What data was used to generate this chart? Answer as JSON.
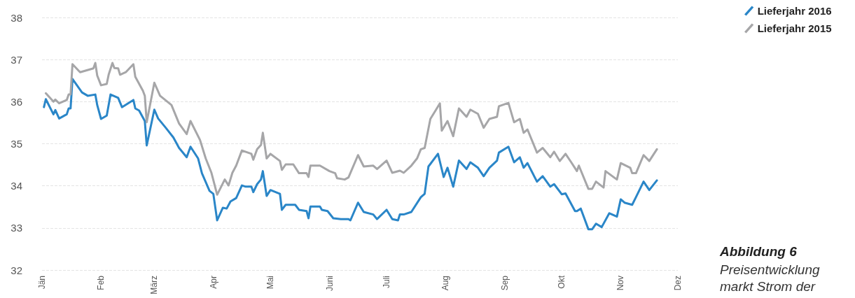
{
  "chart_data": {
    "type": "line",
    "title": "Abbildung 6",
    "annotations": [
      "Preisentwicklung",
      "markt Strom der"
    ],
    "xlim": [
      "--01-01",
      "--12-01"
    ],
    "xticks": [
      {
        "value": "--01-01",
        "label": "Jän"
      },
      {
        "value": "--02-01",
        "label": "Feb"
      },
      {
        "value": "--03-01",
        "label": "März"
      },
      {
        "value": "--04-01",
        "label": "Apr"
      },
      {
        "value": "--05-01",
        "label": "Mai"
      },
      {
        "value": "--06-01",
        "label": "Juni"
      },
      {
        "value": "--07-01",
        "label": "Juli"
      },
      {
        "value": "--08-01",
        "label": "Aug"
      },
      {
        "value": "--09-01",
        "label": "Sep"
      },
      {
        "value": "--10-01",
        "label": "Okt"
      },
      {
        "value": "--11-01",
        "label": "Nov"
      },
      {
        "value": "--12-01",
        "label": "Dez"
      }
    ],
    "ylim": [
      32,
      38
    ],
    "yticks": [
      32,
      33,
      34,
      35,
      36,
      37,
      38
    ],
    "grid": "y",
    "legend": "top right",
    "marker": "none",
    "line_style": "solid",
    "series": [
      {
        "name": "Lieferjahr 2016",
        "color": "#2a86c8",
        "x": [
          "--01-02",
          "--01-03",
          "--01-07",
          "--01-08",
          "--01-10",
          "--01-14",
          "--01-15",
          "--01-16",
          "--01-17",
          "--01-22",
          "--01-25",
          "--01-29",
          "--01-30",
          "--02-01",
          "--02-04",
          "--02-06",
          "--02-10",
          "--02-12",
          "--02-18",
          "--02-19",
          "--02-21",
          "--02-24",
          "--02-25",
          "--03-01",
          "--03-03",
          "--03-07",
          "--03-11",
          "--03-14",
          "--03-18",
          "--03-20",
          "--03-24",
          "--03-26",
          "--03-30",
          "--04-01",
          "--04-03",
          "--04-06",
          "--04-08",
          "--04-10",
          "--04-13",
          "--04-16",
          "--04-18",
          "--04-21",
          "--04-22",
          "--04-24",
          "--04-26",
          "--04-27",
          "--04-29",
          "--05-01",
          "--05-06",
          "--05-07",
          "--05-09",
          "--05-14",
          "--05-16",
          "--05-20",
          "--05-21",
          "--05-22",
          "--05-27",
          "--05-28",
          "--05-31",
          "--06-03",
          "--06-07",
          "--06-11",
          "--06-12",
          "--06-16",
          "--06-19",
          "--06-24",
          "--06-26",
          "--07-01",
          "--07-04",
          "--07-07",
          "--07-08",
          "--07-10",
          "--07-14",
          "--07-19",
          "--07-21",
          "--07-23",
          "--07-28",
          "--07-31",
          "--08-02",
          "--08-05",
          "--08-08",
          "--08-12",
          "--08-14",
          "--08-18",
          "--08-21",
          "--08-24",
          "--08-28",
          "--08-29",
          "--09-03",
          "--09-06",
          "--09-09",
          "--09-11",
          "--09-13",
          "--09-18",
          "--09-21",
          "--09-25",
          "--09-27",
          "--10-01",
          "--10-03",
          "--10-08",
          "--10-09",
          "--10-11",
          "--10-15",
          "--10-17",
          "--10-19",
          "--10-22",
          "--10-26",
          "--10-30",
          "--11-01",
          "--11-03",
          "--11-07",
          "--11-09",
          "--11-13",
          "--11-16",
          "--11-20"
        ],
        "values": [
          35.87,
          36.06,
          35.7,
          35.8,
          35.6,
          35.7,
          35.84,
          35.84,
          36.54,
          36.22,
          36.14,
          36.17,
          35.92,
          35.59,
          35.67,
          36.17,
          36.09,
          35.87,
          36.04,
          35.84,
          35.79,
          35.54,
          34.96,
          35.81,
          35.6,
          35.38,
          35.15,
          34.9,
          34.68,
          34.93,
          34.65,
          34.3,
          33.88,
          33.81,
          33.18,
          33.48,
          33.46,
          33.63,
          33.71,
          34.01,
          33.98,
          33.98,
          33.85,
          34.04,
          34.15,
          34.35,
          33.76,
          33.9,
          33.81,
          33.43,
          33.55,
          33.55,
          33.43,
          33.4,
          33.23,
          33.51,
          33.51,
          33.43,
          33.4,
          33.23,
          33.21,
          33.21,
          33.18,
          33.6,
          33.38,
          33.32,
          33.21,
          33.43,
          33.21,
          33.18,
          33.32,
          33.32,
          33.38,
          33.73,
          33.81,
          34.46,
          34.76,
          34.21,
          34.43,
          33.98,
          34.6,
          34.4,
          34.56,
          34.43,
          34.23,
          34.43,
          34.6,
          34.79,
          34.93,
          34.56,
          34.68,
          34.43,
          34.54,
          34.1,
          34.23,
          33.98,
          34.04,
          33.8,
          33.82,
          33.4,
          33.4,
          33.46,
          32.97,
          32.97,
          33.1,
          33.02,
          33.35,
          33.27,
          33.68,
          33.6,
          33.55,
          33.73,
          34.1,
          33.9,
          34.13
        ]
      },
      {
        "name": "Lieferjahr 2015",
        "color": "#a6a6a8",
        "x": [
          "--01-03",
          "--01-07",
          "--01-08",
          "--01-10",
          "--01-14",
          "--01-15",
          "--01-16",
          "--01-17",
          "--01-21",
          "--01-28",
          "--01-29",
          "--01-30",
          "--02-01",
          "--02-04",
          "--02-05",
          "--02-07",
          "--02-08",
          "--02-10",
          "--02-11",
          "--02-14",
          "--02-18",
          "--02-19",
          "--02-23",
          "--02-24",
          "--02-25",
          "--03-01",
          "--03-04",
          "--03-10",
          "--03-14",
          "--03-18",
          "--03-20",
          "--03-25",
          "--03-28",
          "--03-31",
          "--04-03",
          "--04-07",
          "--04-09",
          "--04-11",
          "--04-13",
          "--04-16",
          "--04-21",
          "--04-22",
          "--04-24",
          "--04-26",
          "--04-27",
          "--04-29",
          "--05-01",
          "--05-06",
          "--05-07",
          "--05-09",
          "--05-13",
          "--05-16",
          "--05-20",
          "--05-21",
          "--05-22",
          "--05-27",
          "--06-01",
          "--06-04",
          "--06-05",
          "--06-09",
          "--06-11",
          "--06-16",
          "--06-19",
          "--06-24",
          "--06-26",
          "--07-01",
          "--07-04",
          "--07-08",
          "--07-10",
          "--07-14",
          "--07-17",
          "--07-19",
          "--07-21",
          "--07-24",
          "--07-27",
          "--07-29",
          "--07-30",
          "--08-02",
          "--08-05",
          "--08-08",
          "--08-12",
          "--08-14",
          "--08-18",
          "--08-21",
          "--08-24",
          "--08-28",
          "--08-29",
          "--09-03",
          "--09-06",
          "--09-09",
          "--09-11",
          "--09-13",
          "--09-18",
          "--09-21",
          "--09-25",
          "--09-27",
          "--09-30",
          "--10-03",
          "--10-06",
          "--10-09",
          "--10-10",
          "--10-15",
          "--10-17",
          "--10-19",
          "--10-23",
          "--10-24",
          "--10-30",
          "--11-01",
          "--11-06",
          "--11-07",
          "--11-09",
          "--11-13",
          "--11-16",
          "--11-20"
        ],
        "values": [
          36.2,
          36.0,
          36.05,
          35.96,
          36.04,
          36.17,
          36.17,
          36.89,
          36.7,
          36.79,
          36.92,
          36.62,
          36.39,
          36.42,
          36.64,
          36.92,
          36.8,
          36.79,
          36.64,
          36.7,
          36.89,
          36.59,
          36.26,
          36.14,
          35.51,
          36.45,
          36.14,
          35.92,
          35.48,
          35.23,
          35.54,
          35.09,
          34.65,
          34.31,
          33.79,
          34.15,
          34.01,
          34.31,
          34.48,
          34.84,
          34.76,
          34.62,
          34.87,
          34.97,
          35.26,
          34.65,
          34.76,
          34.59,
          34.38,
          34.51,
          34.51,
          34.3,
          34.3,
          34.21,
          34.48,
          34.48,
          34.35,
          34.3,
          34.18,
          34.15,
          34.2,
          34.73,
          34.46,
          34.48,
          34.4,
          34.6,
          34.31,
          34.36,
          34.31,
          34.48,
          34.65,
          34.87,
          34.9,
          35.59,
          35.81,
          35.96,
          35.31,
          35.54,
          35.18,
          35.84,
          35.64,
          35.81,
          35.71,
          35.38,
          35.59,
          35.64,
          35.89,
          35.97,
          35.51,
          35.59,
          35.26,
          35.34,
          34.79,
          34.9,
          34.68,
          34.81,
          34.59,
          34.76,
          34.56,
          34.35,
          34.48,
          33.93,
          33.93,
          34.1,
          33.96,
          34.35,
          34.15,
          34.54,
          34.43,
          34.3,
          34.3,
          34.73,
          34.59,
          34.87
        ]
      }
    ]
  }
}
